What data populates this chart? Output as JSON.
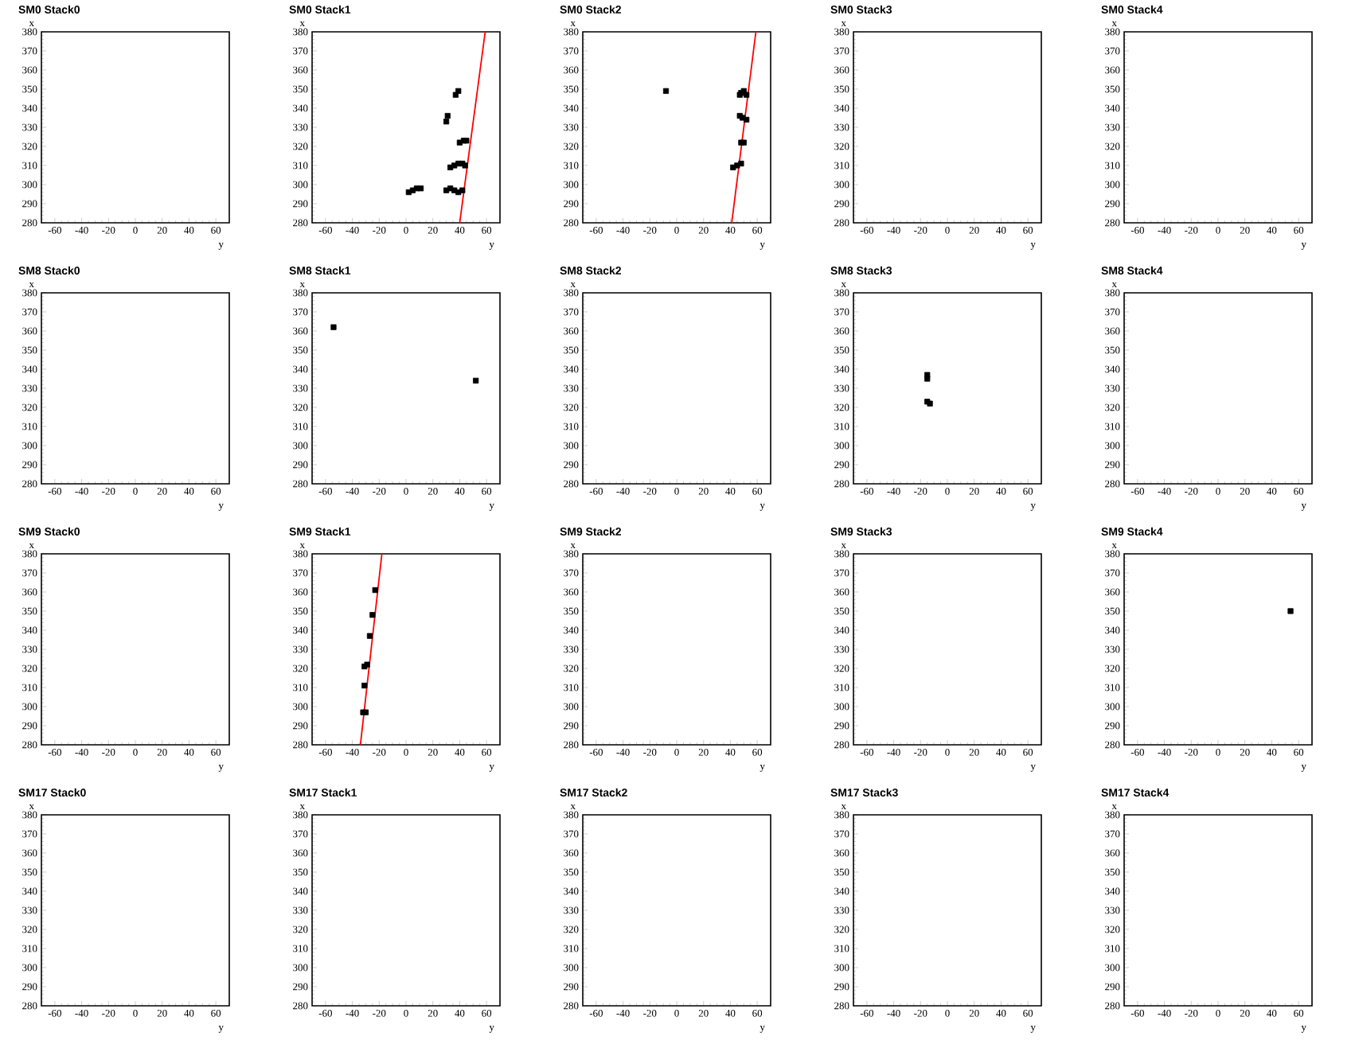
{
  "chart_data": [
    {
      "type": "scatter",
      "title": "SM0 Stack0",
      "xlabel": "y",
      "ylabel": "x",
      "xlim": [
        -70,
        70
      ],
      "ylim": [
        280,
        380
      ],
      "xticks": [
        -60,
        -40,
        -20,
        0,
        20,
        40,
        60
      ],
      "yticks": [
        280,
        290,
        300,
        310,
        320,
        330,
        340,
        350,
        360,
        370,
        380
      ]
    },
    {
      "type": "scatter",
      "title": "SM0 Stack1",
      "xlabel": "y",
      "ylabel": "x",
      "xlim": [
        -70,
        70
      ],
      "ylim": [
        280,
        380
      ],
      "xticks": [
        -60,
        -40,
        -20,
        0,
        20,
        40,
        60
      ],
      "yticks": [
        280,
        290,
        300,
        310,
        320,
        330,
        340,
        350,
        360,
        370,
        380
      ],
      "series": [
        {
          "type": "scatter",
          "marker": "square",
          "color": "#000000",
          "x": [
            2,
            5,
            8,
            11,
            30,
            33,
            36,
            39,
            42,
            33,
            36,
            39,
            42,
            44,
            40,
            43,
            45,
            30,
            31,
            37,
            39
          ],
          "values": [
            296,
            297,
            298,
            298,
            297,
            298,
            297,
            296,
            297,
            309,
            310,
            311,
            311,
            310,
            322,
            323,
            323,
            333,
            336,
            347,
            349
          ]
        },
        {
          "type": "line",
          "color": "#ff0000",
          "x": [
            40,
            59
          ],
          "values": [
            280,
            380
          ]
        }
      ]
    },
    {
      "type": "scatter",
      "title": "SM0 Stack2",
      "xlabel": "y",
      "ylabel": "x",
      "xlim": [
        -70,
        70
      ],
      "ylim": [
        280,
        380
      ],
      "xticks": [
        -60,
        -40,
        -20,
        0,
        20,
        40,
        60
      ],
      "yticks": [
        280,
        290,
        300,
        310,
        320,
        330,
        340,
        350,
        360,
        370,
        380
      ],
      "series": [
        {
          "type": "scatter",
          "marker": "square",
          "color": "#000000",
          "x": [
            -8,
            47,
            48,
            50,
            52,
            47,
            49,
            52,
            48,
            50,
            42,
            45,
            48
          ],
          "values": [
            349,
            347,
            348,
            349,
            347,
            336,
            335,
            334,
            322,
            322,
            309,
            310,
            311
          ]
        },
        {
          "type": "line",
          "color": "#ff0000",
          "x": [
            41,
            59
          ],
          "values": [
            280,
            380
          ]
        }
      ]
    },
    {
      "type": "scatter",
      "title": "SM0 Stack3",
      "xlabel": "y",
      "ylabel": "x",
      "xlim": [
        -70,
        70
      ],
      "ylim": [
        280,
        380
      ],
      "xticks": [
        -60,
        -40,
        -20,
        0,
        20,
        40,
        60
      ],
      "yticks": [
        280,
        290,
        300,
        310,
        320,
        330,
        340,
        350,
        360,
        370,
        380
      ]
    },
    {
      "type": "scatter",
      "title": "SM0 Stack4",
      "xlabel": "y",
      "ylabel": "x",
      "xlim": [
        -70,
        70
      ],
      "ylim": [
        280,
        380
      ],
      "xticks": [
        -60,
        -40,
        -20,
        0,
        20,
        40,
        60
      ],
      "yticks": [
        280,
        290,
        300,
        310,
        320,
        330,
        340,
        350,
        360,
        370,
        380
      ]
    },
    {
      "type": "scatter",
      "title": "SM8 Stack0",
      "xlabel": "y",
      "ylabel": "x",
      "xlim": [
        -70,
        70
      ],
      "ylim": [
        280,
        380
      ],
      "xticks": [
        -60,
        -40,
        -20,
        0,
        20,
        40,
        60
      ],
      "yticks": [
        280,
        290,
        300,
        310,
        320,
        330,
        340,
        350,
        360,
        370,
        380
      ]
    },
    {
      "type": "scatter",
      "title": "SM8 Stack1",
      "xlabel": "y",
      "ylabel": "x",
      "xlim": [
        -70,
        70
      ],
      "ylim": [
        280,
        380
      ],
      "xticks": [
        -60,
        -40,
        -20,
        0,
        20,
        40,
        60
      ],
      "yticks": [
        280,
        290,
        300,
        310,
        320,
        330,
        340,
        350,
        360,
        370,
        380
      ],
      "series": [
        {
          "type": "scatter",
          "marker": "square",
          "color": "#000000",
          "x": [
            -54,
            52
          ],
          "values": [
            362,
            334
          ]
        }
      ]
    },
    {
      "type": "scatter",
      "title": "SM8 Stack2",
      "xlabel": "y",
      "ylabel": "x",
      "xlim": [
        -70,
        70
      ],
      "ylim": [
        280,
        380
      ],
      "xticks": [
        -60,
        -40,
        -20,
        0,
        20,
        40,
        60
      ],
      "yticks": [
        280,
        290,
        300,
        310,
        320,
        330,
        340,
        350,
        360,
        370,
        380
      ]
    },
    {
      "type": "scatter",
      "title": "SM8 Stack3",
      "xlabel": "y",
      "ylabel": "x",
      "xlim": [
        -70,
        70
      ],
      "ylim": [
        280,
        380
      ],
      "xticks": [
        -60,
        -40,
        -20,
        0,
        20,
        40,
        60
      ],
      "yticks": [
        280,
        290,
        300,
        310,
        320,
        330,
        340,
        350,
        360,
        370,
        380
      ],
      "series": [
        {
          "type": "scatter",
          "marker": "square",
          "color": "#000000",
          "x": [
            -15,
            -15,
            -15,
            -13
          ],
          "values": [
            335,
            337,
            323,
            322
          ]
        }
      ]
    },
    {
      "type": "scatter",
      "title": "SM8 Stack4",
      "xlabel": "y",
      "ylabel": "x",
      "xlim": [
        -70,
        70
      ],
      "ylim": [
        280,
        380
      ],
      "xticks": [
        -60,
        -40,
        -20,
        0,
        20,
        40,
        60
      ],
      "yticks": [
        280,
        290,
        300,
        310,
        320,
        330,
        340,
        350,
        360,
        370,
        380
      ]
    },
    {
      "type": "scatter",
      "title": "SM9 Stack0",
      "xlabel": "y",
      "ylabel": "x",
      "xlim": [
        -70,
        70
      ],
      "ylim": [
        280,
        380
      ],
      "xticks": [
        -60,
        -40,
        -20,
        0,
        20,
        40,
        60
      ],
      "yticks": [
        280,
        290,
        300,
        310,
        320,
        330,
        340,
        350,
        360,
        370,
        380
      ]
    },
    {
      "type": "scatter",
      "title": "SM9 Stack1",
      "xlabel": "y",
      "ylabel": "x",
      "xlim": [
        -70,
        70
      ],
      "ylim": [
        280,
        380
      ],
      "xticks": [
        -60,
        -40,
        -20,
        0,
        20,
        40,
        60
      ],
      "yticks": [
        280,
        290,
        300,
        310,
        320,
        330,
        340,
        350,
        360,
        370,
        380
      ],
      "series": [
        {
          "type": "scatter",
          "marker": "square",
          "color": "#000000",
          "x": [
            -23,
            -25,
            -27,
            -29,
            -31,
            -31,
            -32,
            -30
          ],
          "values": [
            361,
            348,
            337,
            322,
            321,
            311,
            297,
            297
          ]
        },
        {
          "type": "line",
          "color": "#ff0000",
          "x": [
            -34,
            -18
          ],
          "values": [
            280,
            380
          ]
        }
      ]
    },
    {
      "type": "scatter",
      "title": "SM9 Stack2",
      "xlabel": "y",
      "ylabel": "x",
      "xlim": [
        -70,
        70
      ],
      "ylim": [
        280,
        380
      ],
      "xticks": [
        -60,
        -40,
        -20,
        0,
        20,
        40,
        60
      ],
      "yticks": [
        280,
        290,
        300,
        310,
        320,
        330,
        340,
        350,
        360,
        370,
        380
      ]
    },
    {
      "type": "scatter",
      "title": "SM9 Stack3",
      "xlabel": "y",
      "ylabel": "x",
      "xlim": [
        -70,
        70
      ],
      "ylim": [
        280,
        380
      ],
      "xticks": [
        -60,
        -40,
        -20,
        0,
        20,
        40,
        60
      ],
      "yticks": [
        280,
        290,
        300,
        310,
        320,
        330,
        340,
        350,
        360,
        370,
        380
      ]
    },
    {
      "type": "scatter",
      "title": "SM9 Stack4",
      "xlabel": "y",
      "ylabel": "x",
      "xlim": [
        -70,
        70
      ],
      "ylim": [
        280,
        380
      ],
      "xticks": [
        -60,
        -40,
        -20,
        0,
        20,
        40,
        60
      ],
      "yticks": [
        280,
        290,
        300,
        310,
        320,
        330,
        340,
        350,
        360,
        370,
        380
      ],
      "series": [
        {
          "type": "scatter",
          "marker": "square",
          "color": "#000000",
          "x": [
            54
          ],
          "values": [
            350
          ]
        }
      ]
    },
    {
      "type": "scatter",
      "title": "SM17 Stack0",
      "xlabel": "y",
      "ylabel": "x",
      "xlim": [
        -70,
        70
      ],
      "ylim": [
        280,
        380
      ],
      "xticks": [
        -60,
        -40,
        -20,
        0,
        20,
        40,
        60
      ],
      "yticks": [
        280,
        290,
        300,
        310,
        320,
        330,
        340,
        350,
        360,
        370,
        380
      ]
    },
    {
      "type": "scatter",
      "title": "SM17 Stack1",
      "xlabel": "y",
      "ylabel": "x",
      "xlim": [
        -70,
        70
      ],
      "ylim": [
        280,
        380
      ],
      "xticks": [
        -60,
        -40,
        -20,
        0,
        20,
        40,
        60
      ],
      "yticks": [
        280,
        290,
        300,
        310,
        320,
        330,
        340,
        350,
        360,
        370,
        380
      ]
    },
    {
      "type": "scatter",
      "title": "SM17 Stack2",
      "xlabel": "y",
      "ylabel": "x",
      "xlim": [
        -70,
        70
      ],
      "ylim": [
        280,
        380
      ],
      "xticks": [
        -60,
        -40,
        -20,
        0,
        20,
        40,
        60
      ],
      "yticks": [
        280,
        290,
        300,
        310,
        320,
        330,
        340,
        350,
        360,
        370,
        380
      ]
    },
    {
      "type": "scatter",
      "title": "SM17 Stack3",
      "xlabel": "y",
      "ylabel": "x",
      "xlim": [
        -70,
        70
      ],
      "ylim": [
        280,
        380
      ],
      "xticks": [
        -60,
        -40,
        -20,
        0,
        20,
        40,
        60
      ],
      "yticks": [
        280,
        290,
        300,
        310,
        320,
        330,
        340,
        350,
        360,
        370,
        380
      ]
    },
    {
      "type": "scatter",
      "title": "SM17 Stack4",
      "xlabel": "y",
      "ylabel": "x",
      "xlim": [
        -70,
        70
      ],
      "ylim": [
        280,
        380
      ],
      "xticks": [
        -60,
        -40,
        -20,
        0,
        20,
        40,
        60
      ],
      "yticks": [
        280,
        290,
        300,
        310,
        320,
        330,
        340,
        350,
        360,
        370,
        380
      ]
    }
  ]
}
